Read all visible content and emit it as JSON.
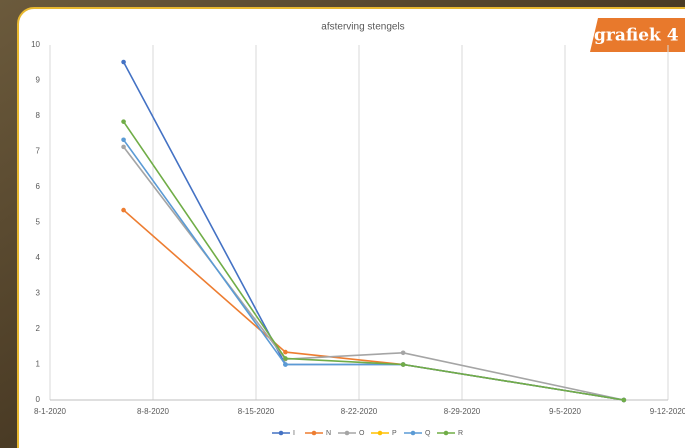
{
  "badge": "grafiek 4",
  "chart_data": {
    "type": "line",
    "title": "afsterving stengels",
    "x": [
      "2020-08-06",
      "2020-08-17",
      "2020-08-25",
      "2020-09-09"
    ],
    "xlim": [
      "2020-08-01",
      "2020-09-12"
    ],
    "xticks": [
      {
        "value": "2020-08-01",
        "label": "8-1-2020"
      },
      {
        "value": "2020-08-08",
        "label": "8-8-2020"
      },
      {
        "value": "2020-08-15",
        "label": "8-15-2020"
      },
      {
        "value": "2020-08-22",
        "label": "8-22-2020"
      },
      {
        "value": "2020-08-29",
        "label": "8-29-2020"
      },
      {
        "value": "2020-09-05",
        "label": "9-5-2020"
      },
      {
        "value": "2020-09-12",
        "label": "9-12-2020"
      }
    ],
    "ylim": [
      0,
      10
    ],
    "yticks": [
      0,
      1,
      2,
      3,
      4,
      5,
      6,
      7,
      8,
      9,
      10
    ],
    "grid": "x",
    "legend": "bottom",
    "series": [
      {
        "name": "I",
        "color": "#4472c4",
        "values": [
          9.52,
          1.0,
          1.0,
          0.0
        ]
      },
      {
        "name": "N",
        "color": "#ed7d31",
        "values": [
          5.35,
          1.35,
          1.0,
          0.0
        ]
      },
      {
        "name": "O",
        "color": "#a5a5a5",
        "values": [
          7.13,
          1.15,
          1.33,
          0.0
        ]
      },
      {
        "name": "P",
        "color": "#ffc000",
        "values": [
          null,
          null,
          null,
          null
        ]
      },
      {
        "name": "Q",
        "color": "#5b9bd5",
        "values": [
          7.33,
          1.0,
          1.0,
          0.0
        ]
      },
      {
        "name": "R",
        "color": "#70ad47",
        "values": [
          7.84,
          1.17,
          1.0,
          0.0
        ]
      }
    ]
  }
}
